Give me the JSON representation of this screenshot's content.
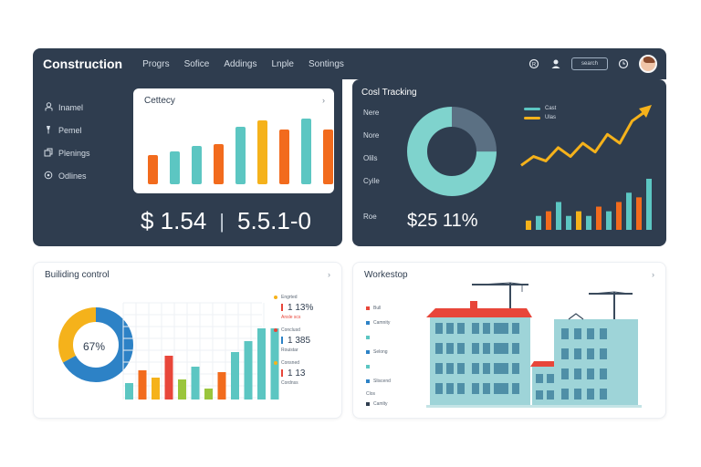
{
  "header": {
    "brand": "Construction",
    "nav": [
      "Progrs",
      "Sofice",
      "Addings",
      "Lnple",
      "Sontings"
    ],
    "search_placeholder": "search"
  },
  "sidebar": {
    "items": [
      {
        "icon": "person-icon",
        "label": "Inamel"
      },
      {
        "icon": "pin-icon",
        "label": "Pemel"
      },
      {
        "icon": "document-icon",
        "label": "Plenings"
      },
      {
        "icon": "circle-icon",
        "label": "Odlines"
      }
    ]
  },
  "category_card": {
    "title": "Cettecy",
    "chart_data": {
      "type": "bar",
      "values": [
        32,
        36,
        42,
        44,
        63,
        70,
        60,
        72,
        60
      ],
      "colors": [
        "#f26b1d",
        "#5cc6c2",
        "#5cc6c2",
        "#f26b1d",
        "#5cc6c2",
        "#f5b21b",
        "#f26b1d",
        "#5cc6c2",
        "#f26b1d"
      ]
    }
  },
  "left_figures": {
    "value_a": "$ 1.54",
    "separator": "|",
    "value_b": "5.5.1-0"
  },
  "cost_tracking": {
    "title": "Cosl Tracking",
    "row_labels": [
      "Nere",
      "Nore",
      "Olils",
      "Cyile",
      "Roe"
    ],
    "figures": "$25  11%",
    "donut": {
      "segments": [
        {
          "value": 25,
          "color": "#5b7083"
        },
        {
          "value": 75,
          "color": "#7fd3cd"
        }
      ]
    },
    "legend": [
      {
        "label": "Cast",
        "color": "#5cc6c2"
      },
      {
        "label": "Ulas",
        "color": "#f5b21b"
      }
    ],
    "chart_data": {
      "type": "line",
      "series": [
        {
          "values": [
            2,
            4,
            3,
            6,
            4,
            7,
            5,
            9,
            7,
            12,
            14
          ]
        }
      ],
      "bars": [
        2,
        3,
        4,
        6,
        3,
        4,
        3,
        5,
        4,
        6,
        8,
        7,
        11
      ]
    }
  },
  "building_card": {
    "title": "Builiding control",
    "donut_pct": "67%",
    "donut": {
      "segments": [
        {
          "value": 67,
          "color": "#2d82c6"
        },
        {
          "value": 33,
          "color": "#f5b21b"
        }
      ]
    },
    "chart_data": {
      "type": "bar",
      "values": [
        18,
        32,
        24,
        48,
        22,
        36,
        12,
        30,
        52,
        64,
        78,
        78
      ],
      "colors": [
        "#5cc6c2",
        "#f26b1d",
        "#f5b21b",
        "#e8463a",
        "#9ac53c",
        "#5cc6c2",
        "#9ac53c",
        "#f26b1d",
        "#5cc6c2",
        "#5cc6c2",
        "#5cc6c2",
        "#5cc6c2"
      ]
    },
    "stats": [
      {
        "dot": "#f5b21b",
        "label": "Engrted",
        "number": "1 13%",
        "mark": "#e8463a",
        "sub": "Ansle scs"
      },
      {
        "dot": "#e8463a",
        "label": "Conclusd",
        "number": "1 385",
        "mark": "#2d82c6",
        "sub": "Rouistar"
      },
      {
        "dot": "#f5b21b",
        "label": "Consned",
        "number": "1 13",
        "mark": "#e8463a",
        "sub": "Cordnss"
      }
    ]
  },
  "workshop_card": {
    "title": "Workestop",
    "legend": [
      {
        "color": "#e8463a",
        "label": "Bull"
      },
      {
        "color": "#2d82c6",
        "label": "Camnity"
      },
      {
        "color": "#5cc6c2",
        "label": ""
      },
      {
        "color": "#2d82c6",
        "label": "Selong"
      },
      {
        "color": "#5cc6c2",
        "label": ""
      },
      {
        "color": "#2d82c6",
        "label": "Sliscend"
      },
      {
        "color": "",
        "label": "Clos"
      },
      {
        "color": "#2f3d4f",
        "label": "Camlty"
      }
    ]
  }
}
